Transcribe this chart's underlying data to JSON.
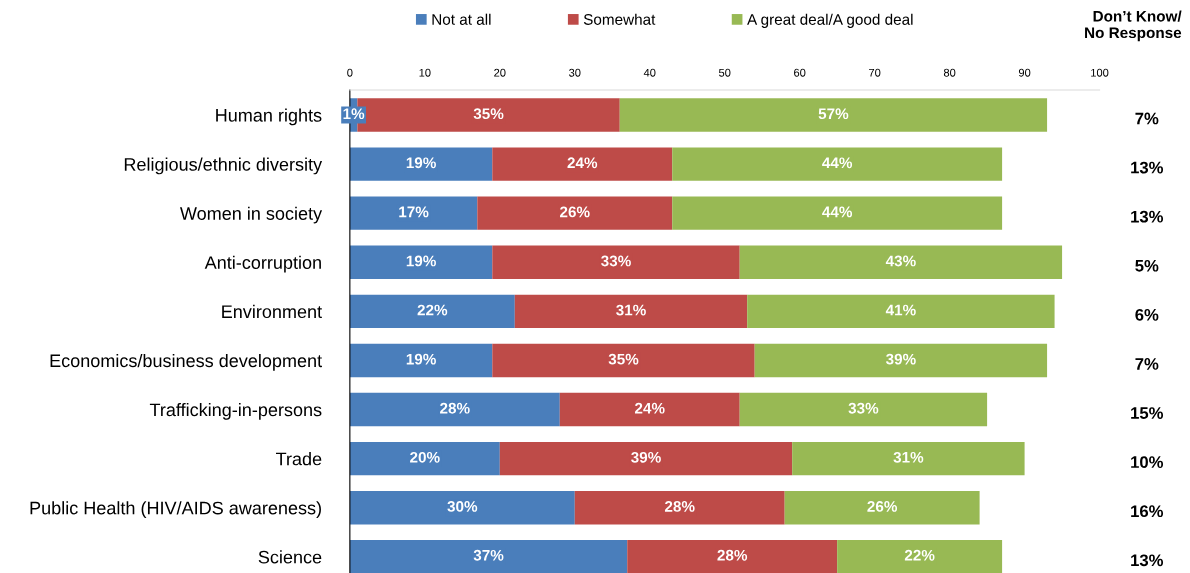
{
  "chart_data": {
    "type": "bar",
    "orientation": "horizontal",
    "stacked": true,
    "categories": [
      "Human rights",
      "Religious/ethnic diversity",
      "Women in society",
      "Anti-corruption",
      "Environment",
      "Economics/business development",
      "Trafficking-in-persons",
      "Trade",
      "Public Health (HIV/AIDS awareness)",
      "Science"
    ],
    "series": [
      {
        "name": "Not at all",
        "color": "#4a7ebb",
        "values": [
          1,
          19,
          17,
          19,
          22,
          19,
          28,
          20,
          30,
          37
        ],
        "value_labels": [
          "1%",
          "19%",
          "17%",
          "19%",
          "22%",
          "19%",
          "28%",
          "20%",
          "30%",
          "37%"
        ]
      },
      {
        "name": "Somewhat",
        "color": "#be4b48",
        "values": [
          35,
          24,
          26,
          33,
          31,
          35,
          24,
          39,
          28,
          28
        ],
        "value_labels": [
          "35%",
          "24%",
          "26%",
          "33%",
          "31%",
          "35%",
          "24%",
          "39%",
          "28%",
          "28%"
        ]
      },
      {
        "name": "A great deal/A good deal",
        "color": "#98b954",
        "values": [
          57,
          44,
          44,
          43,
          41,
          39,
          33,
          31,
          26,
          22
        ],
        "value_labels": [
          "57%",
          "44%",
          "44%",
          "43%",
          "41%",
          "39%",
          "33%",
          "31%",
          "26%",
          "22%"
        ]
      }
    ],
    "xlim": [
      0,
      100
    ],
    "xticks": [
      0,
      10,
      20,
      30,
      40,
      50,
      60,
      70,
      80,
      90,
      100
    ],
    "grid": false,
    "legend": "top",
    "annotations": [
      "Don’t Know/\nNo Response",
      "7%",
      "13%",
      "13%",
      "5%",
      "6%",
      "7%",
      "15%",
      "10%",
      "16%",
      "13%"
    ]
  }
}
